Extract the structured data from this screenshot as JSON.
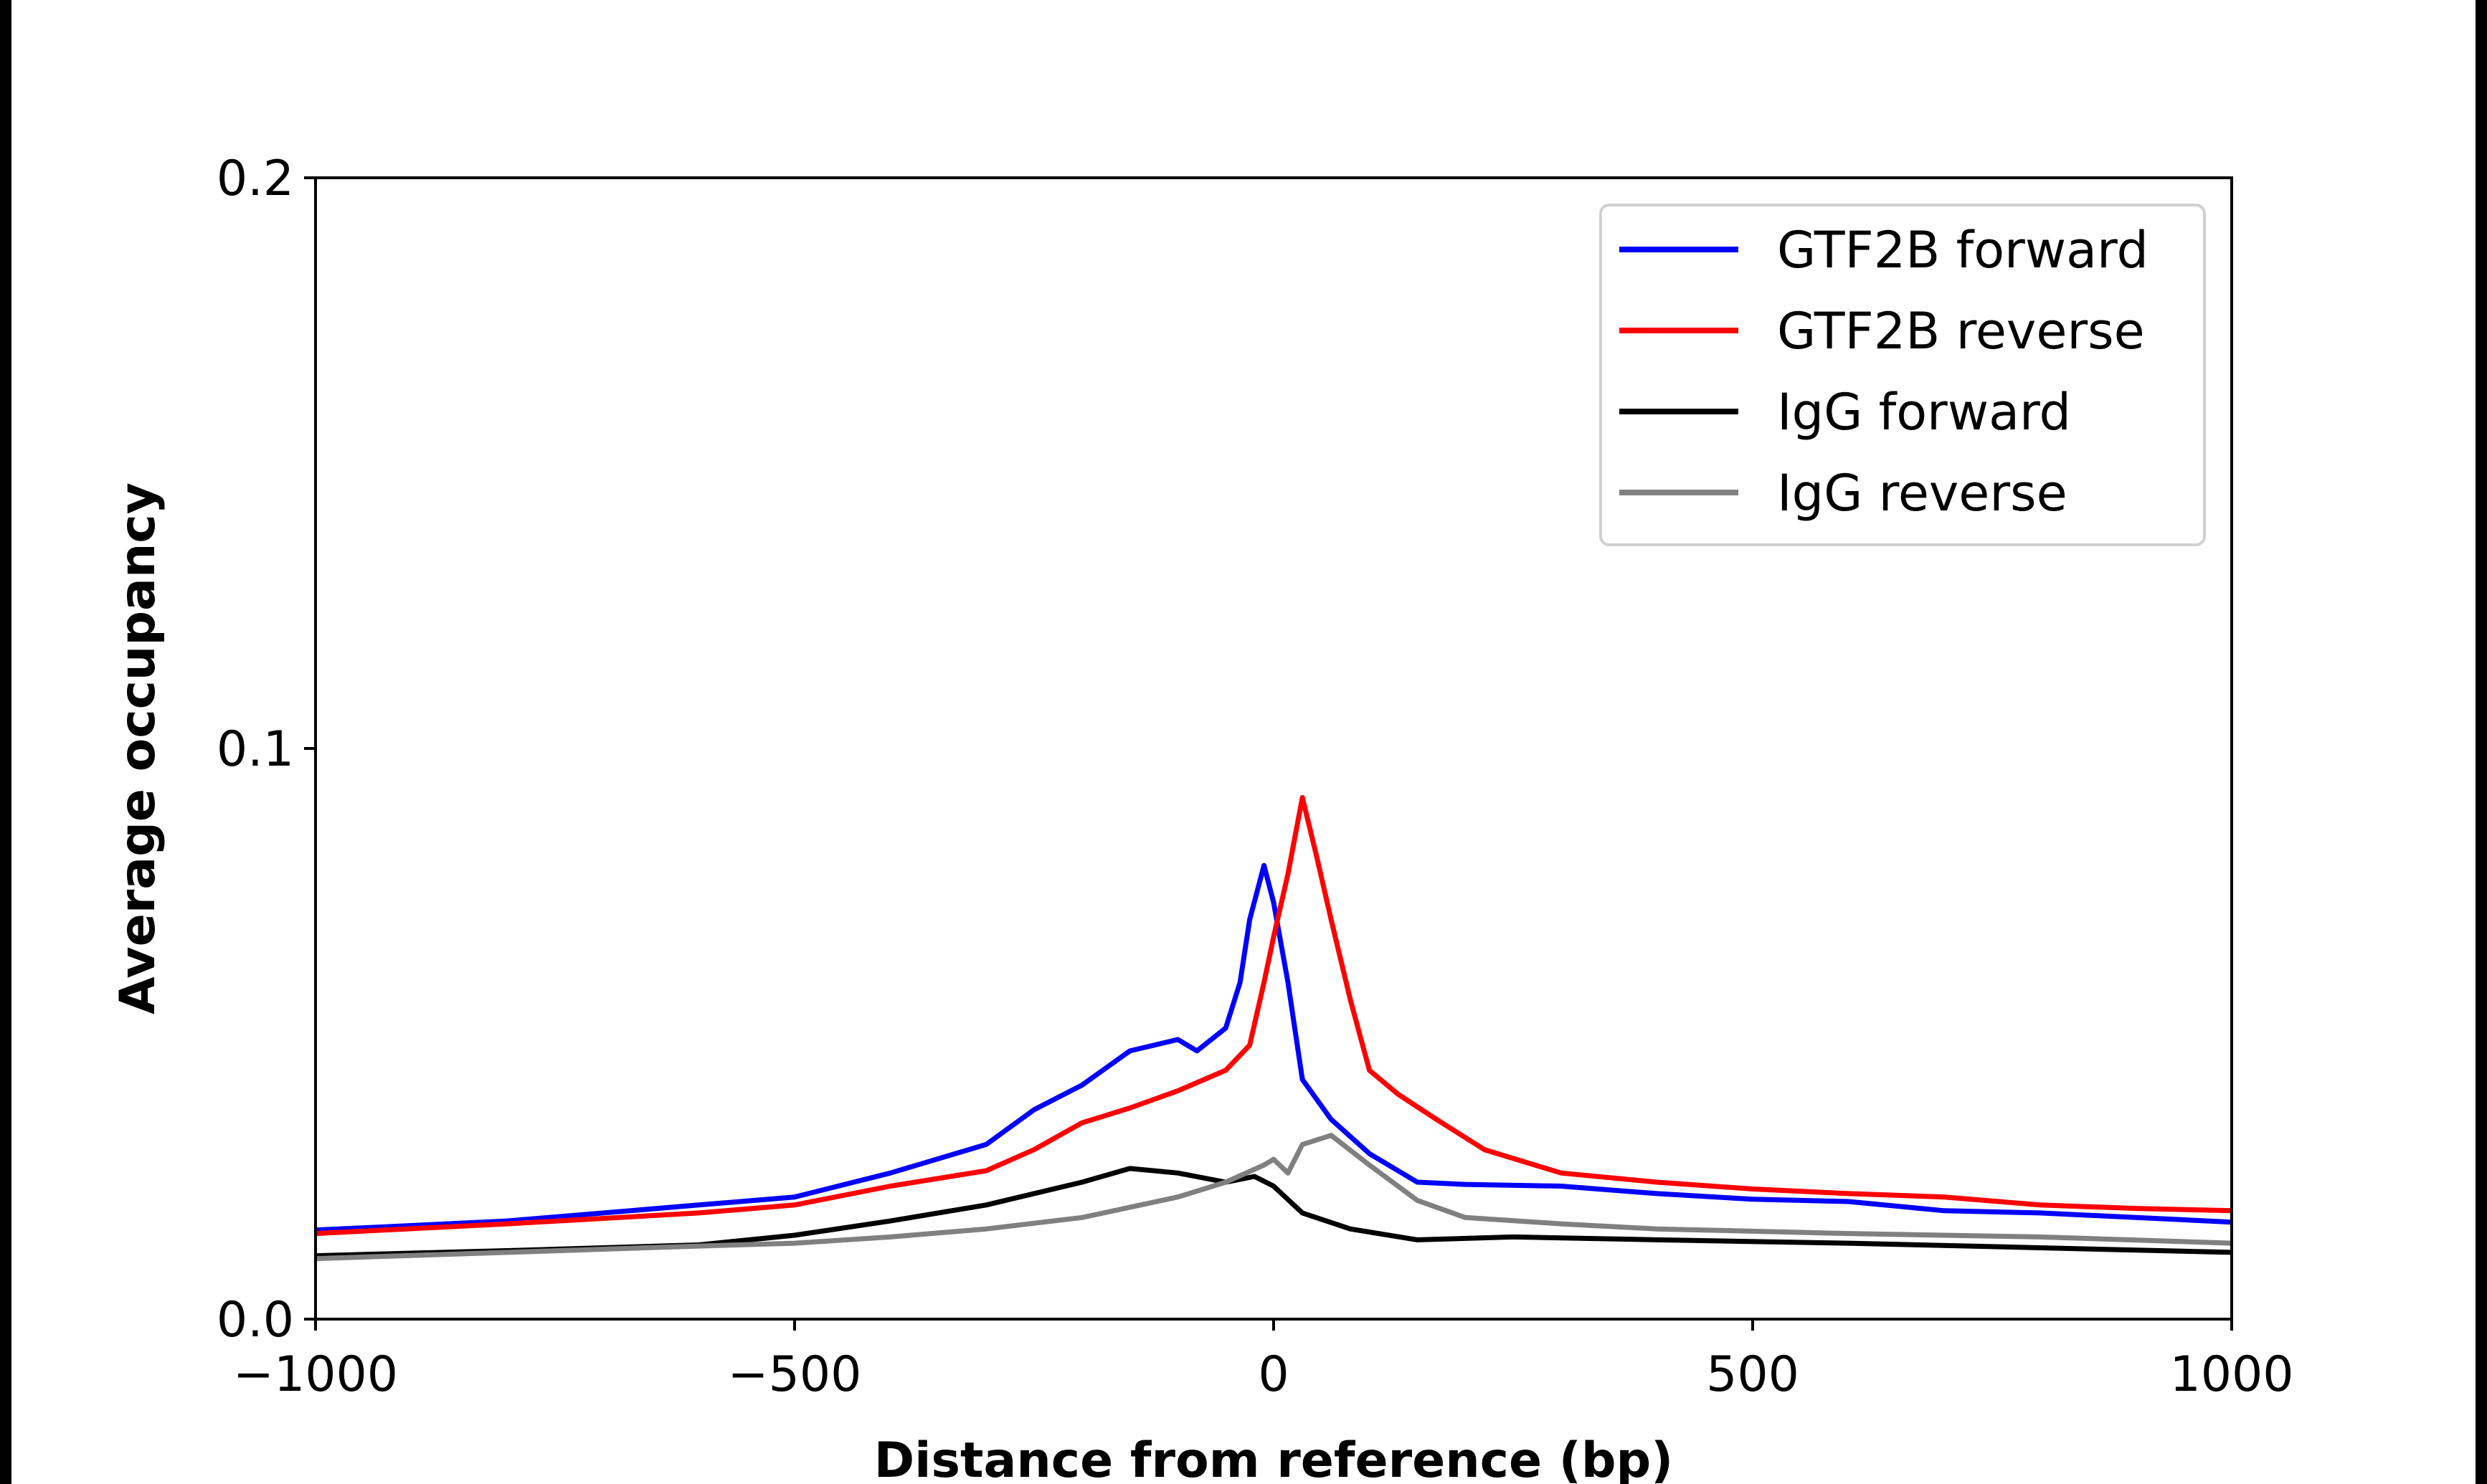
{
  "chart_data": {
    "type": "line",
    "title": "",
    "xlabel": "Distance from reference (bp)",
    "ylabel": "Average occupancy",
    "xlim": [
      -1000,
      1000
    ],
    "ylim": [
      0.0,
      0.2
    ],
    "xticks": [
      -1000,
      -500,
      0,
      500,
      1000
    ],
    "xtick_labels": [
      "−1000",
      "−500",
      "0",
      "500",
      "1000"
    ],
    "yticks": [
      0.0,
      0.1,
      0.2
    ],
    "ytick_labels": [
      "0.0",
      "0.1",
      "0.2"
    ],
    "grid": false,
    "legend_position": "top-right",
    "series": [
      {
        "name": "GTF2B forward",
        "color": "#0000ff",
        "x": [
          -1000,
          -800,
          -600,
          -500,
          -400,
          -300,
          -250,
          -200,
          -150,
          -100,
          -80,
          -50,
          -35,
          -25,
          -10,
          0,
          15,
          30,
          60,
          100,
          150,
          200,
          300,
          400,
          500,
          600,
          700,
          800,
          900,
          1000
        ],
        "y": [
          0.0156,
          0.0172,
          0.02,
          0.0214,
          0.0256,
          0.0306,
          0.0367,
          0.041,
          0.047,
          0.049,
          0.047,
          0.051,
          0.059,
          0.07,
          0.0795,
          0.073,
          0.059,
          0.042,
          0.035,
          0.029,
          0.024,
          0.0236,
          0.0233,
          0.022,
          0.021,
          0.0206,
          0.019,
          0.0186,
          0.0178,
          0.017
        ]
      },
      {
        "name": "GTF2B reverse",
        "color": "#ff0000",
        "x": [
          -1000,
          -800,
          -600,
          -500,
          -400,
          -300,
          -250,
          -200,
          -150,
          -100,
          -50,
          -25,
          -10,
          0,
          15,
          30,
          45,
          60,
          80,
          100,
          130,
          170,
          220,
          300,
          400,
          500,
          600,
          700,
          800,
          900,
          1000
        ],
        "y": [
          0.015,
          0.0167,
          0.0186,
          0.02,
          0.0233,
          0.026,
          0.0297,
          0.0344,
          0.037,
          0.04,
          0.0436,
          0.048,
          0.059,
          0.067,
          0.078,
          0.0914,
          0.081,
          0.07,
          0.056,
          0.0436,
          0.0394,
          0.035,
          0.0297,
          0.0256,
          0.024,
          0.0228,
          0.022,
          0.0214,
          0.02,
          0.0194,
          0.019
        ]
      },
      {
        "name": "IgG forward",
        "color": "#000000",
        "x": [
          -1000,
          -800,
          -600,
          -500,
          -400,
          -300,
          -200,
          -150,
          -100,
          -50,
          -20,
          0,
          30,
          80,
          150,
          250,
          400,
          600,
          800,
          1000
        ],
        "y": [
          0.0111,
          0.012,
          0.013,
          0.0147,
          0.0172,
          0.02,
          0.024,
          0.0264,
          0.0256,
          0.024,
          0.025,
          0.0233,
          0.0186,
          0.0158,
          0.0139,
          0.0144,
          0.0139,
          0.0133,
          0.0125,
          0.0117
        ]
      },
      {
        "name": "IgG reverse",
        "color": "#808080",
        "x": [
          -1000,
          -800,
          -600,
          -500,
          -400,
          -300,
          -200,
          -100,
          -50,
          -10,
          0,
          15,
          30,
          60,
          100,
          150,
          200,
          300,
          400,
          600,
          800,
          1000
        ],
        "y": [
          0.0106,
          0.0117,
          0.0128,
          0.0133,
          0.0144,
          0.0158,
          0.0178,
          0.0214,
          0.024,
          0.027,
          0.028,
          0.0256,
          0.0306,
          0.0322,
          0.027,
          0.0208,
          0.0178,
          0.0167,
          0.0158,
          0.015,
          0.0144,
          0.0133
        ]
      }
    ]
  }
}
